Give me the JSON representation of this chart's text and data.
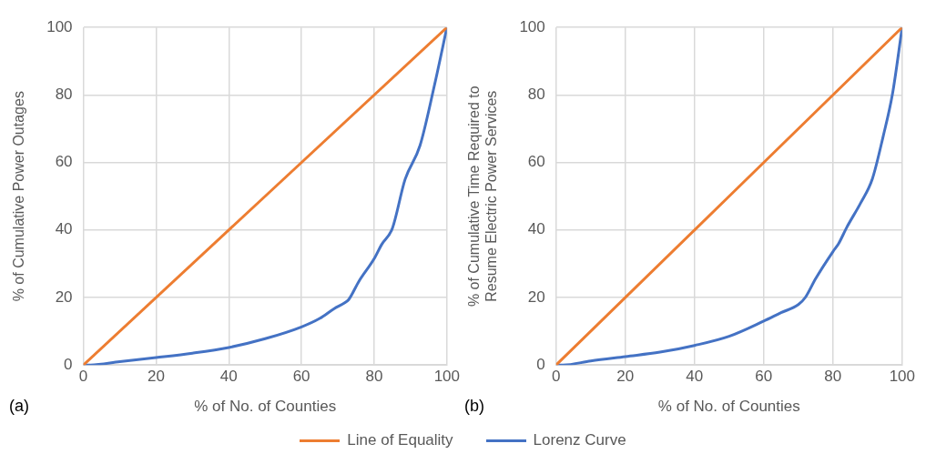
{
  "chart_data": [
    {
      "type": "line",
      "xlabel": "% of No. of Counties",
      "ylabel": "% of Cumulative Power Outages",
      "annotations": [
        "(a)"
      ],
      "xlim": [
        0,
        100
      ],
      "xticks": [
        0,
        20,
        40,
        60,
        80,
        100
      ],
      "ylim": [
        0,
        100
      ],
      "yticks": [
        0,
        20,
        40,
        60,
        80,
        100
      ],
      "grid": true,
      "legend": "bottom",
      "marker": "none",
      "series": [
        {
          "name": "Line of Equality",
          "color": "#ed7d31",
          "x": [
            0,
            100
          ],
          "values": [
            0,
            100
          ]
        },
        {
          "name": "Lorenz Curve",
          "color": "#4472c4",
          "x": [
            0,
            2,
            10,
            20,
            30,
            40,
            50,
            60,
            65,
            69,
            72,
            73,
            75.8,
            80,
            82,
            85,
            88.5,
            92.6,
            96.6,
            100
          ],
          "values": [
            0,
            0,
            1,
            2.2,
            3.5,
            5.2,
            7.8,
            11.3,
            13.8,
            16.7,
            18.5,
            19.4,
            24.8,
            31.5,
            35.6,
            40.5,
            55,
            65,
            83,
            100
          ]
        }
      ]
    },
    {
      "type": "line",
      "xlabel": "% of No. of Counties",
      "ylabel": "% of Cumulative Time Required to Resume Electric Power Services",
      "annotations": [
        "(b)"
      ],
      "xlim": [
        0,
        100
      ],
      "xticks": [
        0,
        20,
        40,
        60,
        80,
        100
      ],
      "ylim": [
        0,
        100
      ],
      "yticks": [
        0,
        20,
        40,
        60,
        80,
        100
      ],
      "grid": true,
      "legend": "bottom",
      "marker": "none",
      "series": [
        {
          "name": "Line of Equality",
          "color": "#ed7d31",
          "x": [
            0,
            100
          ],
          "values": [
            0,
            100
          ]
        },
        {
          "name": "Lorenz Curve",
          "color": "#4472c4",
          "x": [
            0,
            2,
            10,
            20,
            30,
            40,
            50,
            60,
            65,
            70,
            72,
            75,
            80,
            81.6,
            84,
            88,
            91.4,
            94.5,
            97.2,
            100
          ],
          "values": [
            0,
            0,
            1.2,
            2.5,
            3.8,
            5.8,
            8.5,
            13,
            15.5,
            17.9,
            20,
            25.6,
            33.6,
            35.9,
            40.8,
            48,
            55.2,
            67.7,
            80.3,
            100
          ]
        }
      ]
    }
  ]
}
